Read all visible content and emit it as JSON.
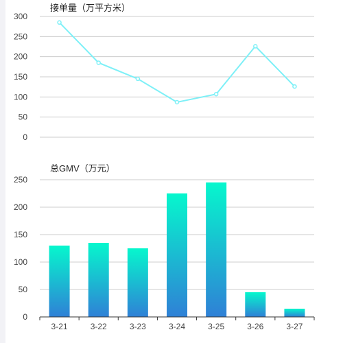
{
  "colors": {
    "line": "#7ef0f7",
    "grid": "#cccccc",
    "axis": "#333333",
    "bar_top": "#06f7cd",
    "bar_bottom": "#2f80d6"
  },
  "chart_data": [
    {
      "type": "line",
      "title": "接单量（万平方米）",
      "categories": [
        "3-21",
        "3-22",
        "3-23",
        "3-24",
        "3-25",
        "3-26",
        "3-27"
      ],
      "values": [
        285,
        185,
        145,
        87,
        107,
        226,
        126
      ],
      "ylim": [
        0,
        300
      ],
      "yticks": [
        "0",
        "50",
        "100",
        "150",
        "200",
        "250",
        "300"
      ],
      "grid": true
    },
    {
      "type": "bar",
      "title": "总GMV（万元）",
      "categories": [
        "3-21",
        "3-22",
        "3-23",
        "3-24",
        "3-25",
        "3-26",
        "3-27"
      ],
      "values": [
        130,
        135,
        125,
        225,
        245,
        45,
        15
      ],
      "ylim": [
        0,
        250
      ],
      "yticks": [
        "0",
        "50",
        "100",
        "150",
        "200",
        "250"
      ],
      "grid": true
    }
  ]
}
